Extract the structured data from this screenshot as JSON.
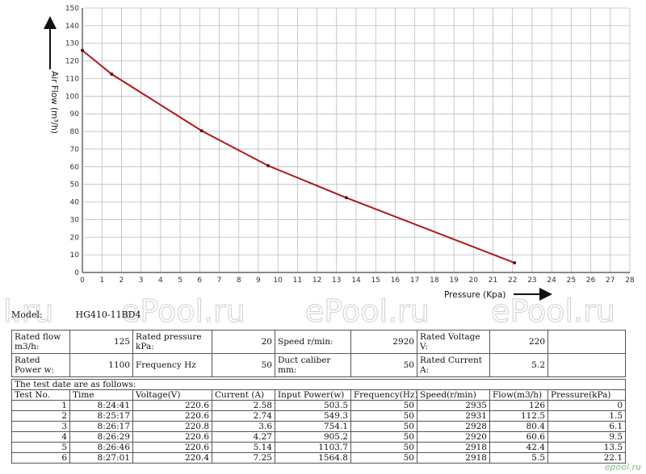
{
  "chart_data": {
    "type": "line",
    "xlabel": "Pressure (Kpa)",
    "ylabel": "Air Flow (m³/h)",
    "xlim": [
      0,
      28
    ],
    "ylim": [
      0,
      150
    ],
    "xticks": [
      0,
      1,
      2,
      3,
      4,
      5,
      6,
      7,
      8,
      9,
      10,
      11,
      12,
      13,
      14,
      15,
      16,
      17,
      18,
      19,
      20,
      21,
      22,
      23,
      24,
      25,
      26,
      27,
      28
    ],
    "yticks": [
      0,
      10,
      20,
      30,
      40,
      50,
      60,
      70,
      80,
      90,
      100,
      110,
      120,
      130,
      140,
      150
    ],
    "grid": true,
    "line_color": "#b01818",
    "series": [
      {
        "x": [
          0,
          1.5,
          6.1,
          9.5,
          13.5,
          22.1
        ],
        "y": [
          126,
          112.5,
          80.4,
          60.6,
          42.4,
          5.5
        ]
      }
    ]
  },
  "watermarks": [
    "l.ru",
    "ePool.ru",
    "ePool.ru",
    "ePool.ru"
  ],
  "model": {
    "label": "Model:",
    "value": "HG410-11BD4"
  },
  "specs": {
    "rated_flow_label": "Rated flow m3/h:",
    "rated_flow": "125",
    "rated_pressure_label": "Rated pressure kPa:",
    "rated_pressure": "20",
    "speed_label": "Speed r/min:",
    "speed": "2920",
    "rated_voltage_label": "Rated Voltage V:",
    "rated_voltage": "220",
    "rated_power_label": "Rated Power w:",
    "rated_power": "1100",
    "frequency_label": "Frequency Hz",
    "frequency": "50",
    "duct_label": "Duct caliber mm:",
    "duct": "50",
    "rated_current_label": "Rated Current A:",
    "rated_current": "5.2"
  },
  "tests": {
    "note": "The test date are as follows:",
    "headers": [
      "Test No.",
      "Time",
      "Voltage(V)",
      "Current (A)",
      "Input Power(w)",
      "Frequency(Hz)",
      "Speed(r/min)",
      "Flow(m3/h)",
      "Pressure(kPa)"
    ],
    "rows": [
      [
        "1",
        "8:24:41",
        "220.6",
        "2.58",
        "503.5",
        "50",
        "2935",
        "126",
        "0"
      ],
      [
        "2",
        "8:25:17",
        "220.6",
        "2.74",
        "549.3",
        "50",
        "2931",
        "112.5",
        "1.5"
      ],
      [
        "3",
        "8:26:17",
        "220.8",
        "3.6",
        "754.1",
        "50",
        "2928",
        "80.4",
        "6.1"
      ],
      [
        "4",
        "8:26:29",
        "220.6",
        "4.27",
        "905.2",
        "50",
        "2920",
        "60.6",
        "9.5"
      ],
      [
        "5",
        "8:26:46",
        "220.6",
        "5.14",
        "1103.7",
        "50",
        "2918",
        "42.4",
        "13.5"
      ],
      [
        "6",
        "8:27:01",
        "220.4",
        "7.25",
        "1564.8",
        "50",
        "2918",
        "5.5",
        "22.1"
      ]
    ]
  },
  "site": "epool.ru"
}
